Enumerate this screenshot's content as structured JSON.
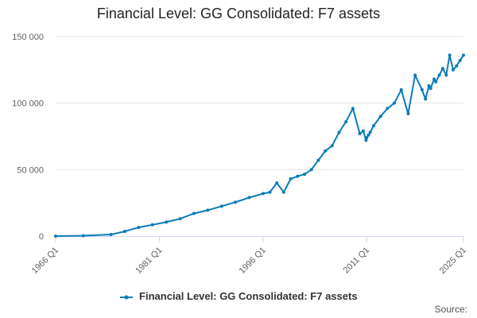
{
  "chart_data": {
    "type": "line",
    "title": "Financial Level: GG Consolidated: F7 assets",
    "series": [
      {
        "name": "Financial Level: GG Consolidated: F7 assets",
        "color": "#0a7bb8",
        "x": [
          1966,
          1970,
          1974,
          1976,
          1978,
          1980,
          1982,
          1984,
          1986,
          1988,
          1990,
          1992,
          1994,
          1996,
          1997,
          1998,
          1999,
          2000,
          2001,
          2002,
          2003,
          2004,
          2005,
          2006,
          2007,
          2008,
          2009,
          2010,
          2010.5,
          2010.9,
          2011,
          2011.25,
          2011.5,
          2012,
          2013,
          2014,
          2015,
          2016,
          2017,
          2018,
          2019,
          2019.5,
          2020,
          2020.25,
          2020.75,
          2021,
          2021.5,
          2022,
          2022.5,
          2023,
          2023.5,
          2024,
          2024.5,
          2025
        ],
        "values": [
          0,
          300,
          1200,
          3500,
          6500,
          8500,
          10500,
          13000,
          17000,
          19500,
          22500,
          25500,
          29000,
          32000,
          33000,
          40000,
          33000,
          43000,
          45000,
          46500,
          50000,
          57000,
          64000,
          68000,
          78000,
          86000,
          96000,
          77000,
          79000,
          72000,
          74000,
          76000,
          78000,
          83000,
          90000,
          96000,
          100000,
          110000,
          92000,
          121000,
          110000,
          103000,
          113000,
          111000,
          118000,
          116000,
          121000,
          126000,
          121000,
          136000,
          125000,
          128000,
          132000,
          136000
        ]
      }
    ],
    "x_tick_labels": [
      "1966 Q1",
      "1981 Q1",
      "1996 Q1",
      "2011 Q1",
      "2025 Q1"
    ],
    "x_tick_values": [
      1966,
      1981,
      1996,
      2011,
      2025
    ],
    "y_tick_labels": [
      "0",
      "50 000",
      "100 000",
      "150 000"
    ],
    "y_tick_values": [
      0,
      50000,
      100000,
      150000
    ],
    "xlim": [
      1966,
      2025
    ],
    "ylim": [
      0,
      150000
    ],
    "grid": "horizontal",
    "legend_position": "bottom"
  },
  "legend": {
    "label": "Financial Level: GG Consolidated: F7 assets"
  },
  "source_label": "Source:"
}
